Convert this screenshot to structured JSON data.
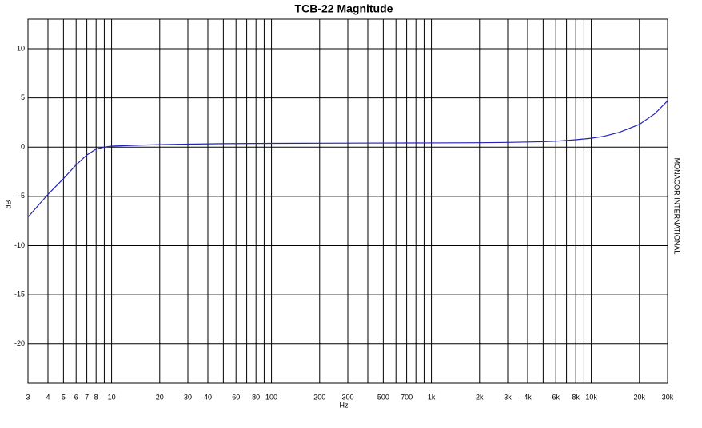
{
  "chart_data": {
    "type": "line",
    "title": "TCB-22 Magnitude",
    "x_label": "Hz",
    "y_label": "dB",
    "side_text": "MONACOR INTERNATIONAL",
    "x_log": true,
    "grid": true,
    "xlim": [
      3,
      30000
    ],
    "ylim": [
      -24,
      13
    ],
    "xticks": [
      3,
      4,
      5,
      6,
      7,
      8,
      10,
      20,
      30,
      40,
      60,
      80,
      100,
      200,
      300,
      500,
      700,
      {
        "value": 1000,
        "label": "1k"
      },
      {
        "value": 2000,
        "label": "2k"
      },
      {
        "value": 3000,
        "label": "3k"
      },
      {
        "value": 4000,
        "label": "4k"
      },
      {
        "value": 6000,
        "label": "6k"
      },
      {
        "value": 8000,
        "label": "8k"
      },
      {
        "value": 10000,
        "label": "10k"
      },
      {
        "value": 20000,
        "label": "20k"
      },
      {
        "value": 30000,
        "label": "30k"
      }
    ],
    "x_minor_grid": [
      9,
      50,
      70,
      90,
      400,
      600,
      800,
      900,
      5000,
      7000,
      9000
    ],
    "yticks": [
      10,
      5,
      0,
      -5,
      -10,
      -15,
      -20
    ],
    "series": [
      {
        "name": "TCB-22",
        "color": "#2323b8",
        "x": [
          3,
          4,
          5,
          6,
          7,
          8,
          9,
          10,
          15,
          20,
          30,
          50,
          100,
          200,
          500,
          1000,
          2000,
          3000,
          5000,
          6000,
          8000,
          10000,
          12000,
          15000,
          20000,
          25000,
          30000
        ],
        "values": [
          -7.1,
          -4.8,
          -3.2,
          -1.8,
          -0.8,
          -0.2,
          0.0,
          0.1,
          0.2,
          0.25,
          0.3,
          0.35,
          0.38,
          0.4,
          0.42,
          0.43,
          0.45,
          0.48,
          0.55,
          0.6,
          0.75,
          0.9,
          1.1,
          1.5,
          2.3,
          3.4,
          4.7
        ]
      }
    ]
  }
}
